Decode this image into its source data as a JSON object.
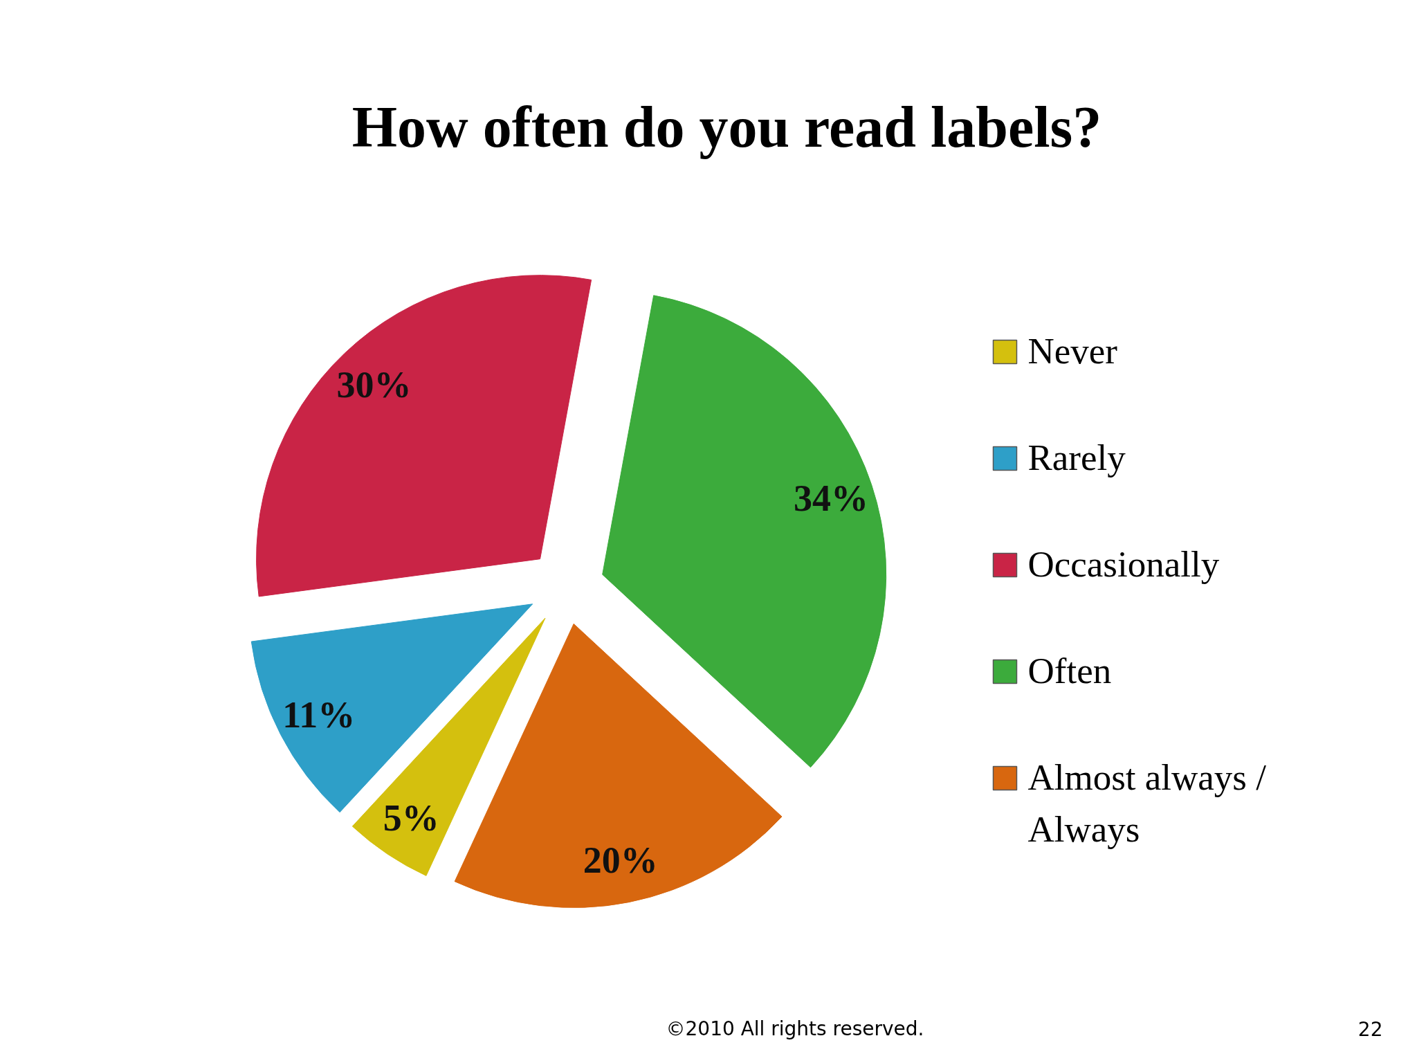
{
  "chart_data": {
    "type": "pie",
    "title": "How often do you read labels?",
    "categories": [
      "Never",
      "Rarely",
      "Occasionally",
      "Often",
      "Almost always / Always"
    ],
    "values": [
      5,
      11,
      30,
      34,
      20
    ],
    "colors": [
      "#d4c00e",
      "#2e9fc8",
      "#c92446",
      "#3cab3c",
      "#d8670f"
    ],
    "value_labels": [
      "5%",
      "11%",
      "30%",
      "34%",
      "20%"
    ],
    "legend": "right",
    "annotations": [
      "©2010 All rights reserved.",
      "22"
    ]
  }
}
